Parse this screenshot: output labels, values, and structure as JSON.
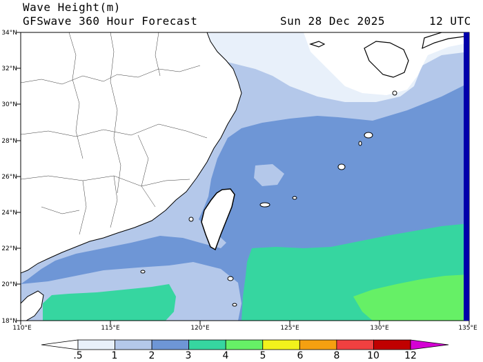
{
  "header": {
    "title": "Wave Height(m)",
    "model": "GFSwave 360 Hour Forecast",
    "date": "Sun 28 Dec 2025",
    "time": "12 UTC"
  },
  "map": {
    "lat_labels": [
      "34°N",
      "32°N",
      "30°N",
      "28°N",
      "26°N",
      "24°N",
      "22°N",
      "20°N",
      "18°N"
    ],
    "lon_labels": [
      "110°E",
      "115°E",
      "120°E",
      "125°E",
      "130°E",
      "135°E"
    ]
  },
  "legend": {
    "labels": [
      ".5",
      "1",
      "2",
      "3",
      "4",
      "5",
      "6",
      "8",
      "10",
      "12"
    ],
    "colors": [
      "#ffffff",
      "#e8f0fa",
      "#b4c8ea",
      "#6e96d6",
      "#36d6a0",
      "#66f066",
      "#f2f21c",
      "#f5a010",
      "#f04040",
      "#c00000",
      "#d400d4"
    ]
  }
}
